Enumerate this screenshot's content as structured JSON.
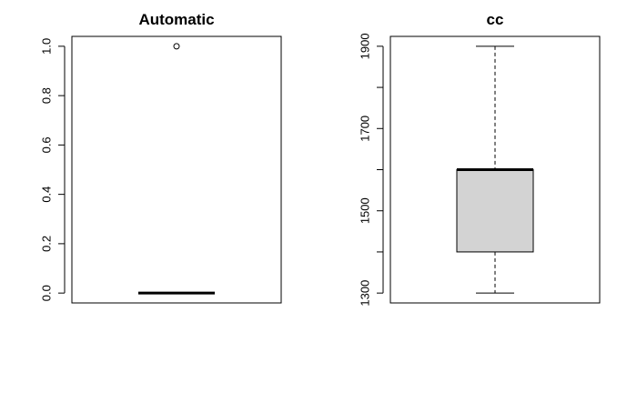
{
  "chart_data": [
    {
      "type": "box",
      "title": "Automatic",
      "xlabel": "",
      "ylabel": "",
      "ylim": [
        -0.04,
        1.04
      ],
      "yticks": [
        0.0,
        0.2,
        0.4,
        0.6,
        0.8,
        1.0
      ],
      "ytick_labels": [
        "0.0",
        "0.2",
        "0.4",
        "0.6",
        "0.8",
        "1.0"
      ],
      "box": {
        "min": 0,
        "q1": 0,
        "median": 0,
        "q3": 0,
        "max": 0
      },
      "outliers": [
        1
      ],
      "fill_color": "#ffffff",
      "grid": false
    },
    {
      "type": "box",
      "title": "cc",
      "xlabel": "",
      "ylabel": "",
      "ylim": [
        1276,
        1924
      ],
      "yticks": [
        1300,
        1400,
        1500,
        1600,
        1700,
        1800,
        1900
      ],
      "ytick_labels": [
        "1300",
        "",
        "1500",
        "",
        "1700",
        "",
        "1900"
      ],
      "box": {
        "min": 1300,
        "q1": 1400,
        "median": 1600,
        "q3": 1600,
        "max": 1900
      },
      "outliers": [],
      "fill_color": "#d3d3d3",
      "grid": false
    }
  ]
}
